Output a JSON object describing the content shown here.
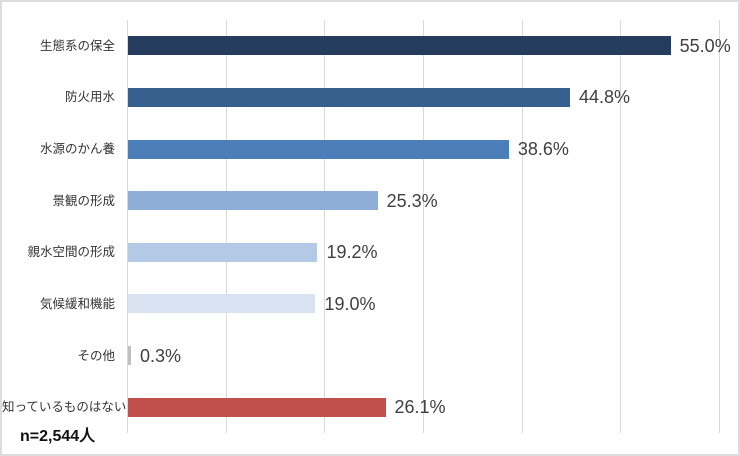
{
  "chart_data": {
    "type": "bar",
    "orientation": "horizontal",
    "title": "",
    "xlabel": "",
    "ylabel": "",
    "xlim": [
      0,
      60
    ],
    "x_tick_step": 10,
    "grid": true,
    "gridline_color": "#d9d9d9",
    "categories": [
      "生態系の保全",
      "防火用水",
      "水源のかん養",
      "景観の形成",
      "親水空間の形成",
      "気候緩和機能",
      "その他",
      "知っているものはない"
    ],
    "values": [
      55.0,
      44.8,
      38.6,
      25.3,
      19.2,
      19.0,
      0.3,
      26.1
    ],
    "value_labels": [
      "55.0%",
      "44.8%",
      "38.6%",
      "25.3%",
      "19.2%",
      "19.0%",
      "0.3%",
      "26.1%"
    ],
    "bar_colors": [
      "#253c5f",
      "#36618f",
      "#4c7fba",
      "#8faed7",
      "#b3c9e5",
      "#d9e2f1",
      "#bfbfbf",
      "#c1504c"
    ],
    "sample_size_label": "n=2,544人"
  }
}
